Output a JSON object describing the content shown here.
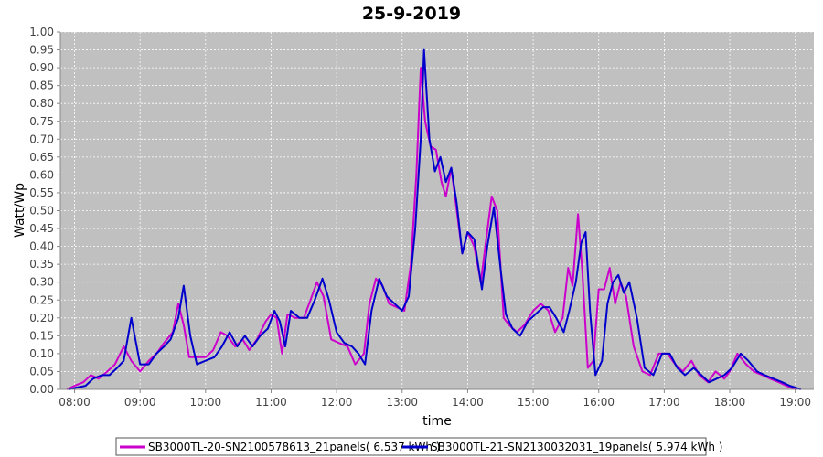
{
  "chart_data": {
    "type": "line",
    "title": "25-9-2019",
    "xlabel": "time",
    "ylabel": "Watt/Wp",
    "ylim": [
      0,
      1.0
    ],
    "xlim": [
      "07:47",
      "19:17"
    ],
    "y_ticks": [
      "0.00",
      "0.05",
      "0.10",
      "0.15",
      "0.20",
      "0.25",
      "0.30",
      "0.35",
      "0.40",
      "0.45",
      "0.50",
      "0.55",
      "0.60",
      "0.65",
      "0.70",
      "0.75",
      "0.80",
      "0.85",
      "0.90",
      "0.95",
      "1.00"
    ],
    "x_ticks": [
      "08:00",
      "09:00",
      "10:00",
      "11:00",
      "12:00",
      "13:00",
      "14:00",
      "15:00",
      "16:00",
      "17:00",
      "18:00",
      "19:00"
    ],
    "grid": true,
    "legend_position": "bottom",
    "series": [
      {
        "name": "SB3000TL-20-SN2100578613_21panels( 6.537 kWh )",
        "color": "#cc00cc",
        "points": [
          [
            "07:53",
            0.0
          ],
          [
            "08:00",
            0.01
          ],
          [
            "08:08",
            0.02
          ],
          [
            "08:15",
            0.04
          ],
          [
            "08:22",
            0.03
          ],
          [
            "08:30",
            0.05
          ],
          [
            "08:37",
            0.07
          ],
          [
            "08:45",
            0.12
          ],
          [
            "08:52",
            0.08
          ],
          [
            "09:00",
            0.05
          ],
          [
            "09:08",
            0.08
          ],
          [
            "09:15",
            0.1
          ],
          [
            "09:22",
            0.13
          ],
          [
            "09:30",
            0.16
          ],
          [
            "09:35",
            0.24
          ],
          [
            "09:40",
            0.18
          ],
          [
            "09:45",
            0.09
          ],
          [
            "09:52",
            0.09
          ],
          [
            "10:00",
            0.09
          ],
          [
            "10:07",
            0.11
          ],
          [
            "10:14",
            0.16
          ],
          [
            "10:20",
            0.15
          ],
          [
            "10:27",
            0.12
          ],
          [
            "10:34",
            0.14
          ],
          [
            "10:40",
            0.11
          ],
          [
            "10:47",
            0.14
          ],
          [
            "10:55",
            0.19
          ],
          [
            "11:00",
            0.21
          ],
          [
            "11:05",
            0.2
          ],
          [
            "11:10",
            0.1
          ],
          [
            "11:15",
            0.21
          ],
          [
            "11:22",
            0.2
          ],
          [
            "11:30",
            0.2
          ],
          [
            "11:36",
            0.25
          ],
          [
            "11:42",
            0.3
          ],
          [
            "11:48",
            0.26
          ],
          [
            "11:55",
            0.14
          ],
          [
            "12:02",
            0.13
          ],
          [
            "12:10",
            0.12
          ],
          [
            "12:17",
            0.07
          ],
          [
            "12:25",
            0.1
          ],
          [
            "12:30",
            0.24
          ],
          [
            "12:36",
            0.31
          ],
          [
            "12:42",
            0.29
          ],
          [
            "12:48",
            0.24
          ],
          [
            "12:55",
            0.23
          ],
          [
            "13:02",
            0.22
          ],
          [
            "13:08",
            0.35
          ],
          [
            "13:13",
            0.6
          ],
          [
            "13:17",
            0.9
          ],
          [
            "13:21",
            0.75
          ],
          [
            "13:26",
            0.68
          ],
          [
            "13:31",
            0.67
          ],
          [
            "13:36",
            0.58
          ],
          [
            "13:40",
            0.54
          ],
          [
            "13:45",
            0.62
          ],
          [
            "13:50",
            0.5
          ],
          [
            "13:55",
            0.38
          ],
          [
            "14:00",
            0.44
          ],
          [
            "14:06",
            0.4
          ],
          [
            "14:12",
            0.3
          ],
          [
            "14:17",
            0.42
          ],
          [
            "14:22",
            0.54
          ],
          [
            "14:27",
            0.5
          ],
          [
            "14:33",
            0.2
          ],
          [
            "14:38",
            0.18
          ],
          [
            "14:45",
            0.16
          ],
          [
            "14:52",
            0.18
          ],
          [
            "15:00",
            0.22
          ],
          [
            "15:07",
            0.24
          ],
          [
            "15:14",
            0.22
          ],
          [
            "15:20",
            0.16
          ],
          [
            "15:27",
            0.2
          ],
          [
            "15:32",
            0.34
          ],
          [
            "15:36",
            0.29
          ],
          [
            "15:41",
            0.49
          ],
          [
            "15:45",
            0.33
          ],
          [
            "15:50",
            0.06
          ],
          [
            "15:55",
            0.08
          ],
          [
            "16:00",
            0.28
          ],
          [
            "16:05",
            0.28
          ],
          [
            "16:10",
            0.34
          ],
          [
            "16:15",
            0.24
          ],
          [
            "16:20",
            0.3
          ],
          [
            "16:25",
            0.26
          ],
          [
            "16:32",
            0.12
          ],
          [
            "16:40",
            0.05
          ],
          [
            "16:47",
            0.04
          ],
          [
            "16:55",
            0.1
          ],
          [
            "17:03",
            0.1
          ],
          [
            "17:10",
            0.07
          ],
          [
            "17:17",
            0.05
          ],
          [
            "17:25",
            0.08
          ],
          [
            "17:32",
            0.04
          ],
          [
            "17:40",
            0.02
          ],
          [
            "17:47",
            0.05
          ],
          [
            "17:55",
            0.03
          ],
          [
            "18:00",
            0.05
          ],
          [
            "18:07",
            0.1
          ],
          [
            "18:15",
            0.07
          ],
          [
            "18:22",
            0.05
          ],
          [
            "18:30",
            0.04
          ],
          [
            "18:37",
            0.03
          ],
          [
            "18:45",
            0.02
          ],
          [
            "18:52",
            0.01
          ],
          [
            "19:00",
            0.0
          ]
        ]
      },
      {
        "name": "SB3000TL-21-SN2130032031_19panels( 5.974 kWh )",
        "color": "#0000cc",
        "points": [
          [
            "07:55",
            0.0
          ],
          [
            "08:02",
            0.005
          ],
          [
            "08:10",
            0.01
          ],
          [
            "08:17",
            0.03
          ],
          [
            "08:25",
            0.04
          ],
          [
            "08:32",
            0.04
          ],
          [
            "08:39",
            0.06
          ],
          [
            "08:45",
            0.08
          ],
          [
            "08:52",
            0.2
          ],
          [
            "09:00",
            0.07
          ],
          [
            "09:08",
            0.07
          ],
          [
            "09:15",
            0.1
          ],
          [
            "09:22",
            0.12
          ],
          [
            "09:28",
            0.14
          ],
          [
            "09:35",
            0.2
          ],
          [
            "09:40",
            0.29
          ],
          [
            "09:46",
            0.15
          ],
          [
            "09:52",
            0.07
          ],
          [
            "10:00",
            0.08
          ],
          [
            "10:08",
            0.09
          ],
          [
            "10:15",
            0.12
          ],
          [
            "10:22",
            0.16
          ],
          [
            "10:29",
            0.12
          ],
          [
            "10:36",
            0.15
          ],
          [
            "10:43",
            0.12
          ],
          [
            "10:50",
            0.15
          ],
          [
            "10:57",
            0.17
          ],
          [
            "11:03",
            0.22
          ],
          [
            "11:08",
            0.19
          ],
          [
            "11:13",
            0.12
          ],
          [
            "11:18",
            0.22
          ],
          [
            "11:26",
            0.2
          ],
          [
            "11:33",
            0.2
          ],
          [
            "11:40",
            0.25
          ],
          [
            "11:47",
            0.31
          ],
          [
            "11:53",
            0.25
          ],
          [
            "12:00",
            0.16
          ],
          [
            "12:07",
            0.13
          ],
          [
            "12:14",
            0.12
          ],
          [
            "12:20",
            0.1
          ],
          [
            "12:26",
            0.07
          ],
          [
            "12:32",
            0.22
          ],
          [
            "12:39",
            0.31
          ],
          [
            "12:46",
            0.26
          ],
          [
            "12:53",
            0.24
          ],
          [
            "13:00",
            0.22
          ],
          [
            "13:06",
            0.26
          ],
          [
            "13:12",
            0.45
          ],
          [
            "13:17",
            0.7
          ],
          [
            "13:20",
            0.95
          ],
          [
            "13:25",
            0.7
          ],
          [
            "13:30",
            0.61
          ],
          [
            "13:35",
            0.65
          ],
          [
            "13:40",
            0.58
          ],
          [
            "13:45",
            0.62
          ],
          [
            "13:50",
            0.52
          ],
          [
            "13:55",
            0.38
          ],
          [
            "14:00",
            0.44
          ],
          [
            "14:06",
            0.42
          ],
          [
            "14:13",
            0.28
          ],
          [
            "14:18",
            0.4
          ],
          [
            "14:24",
            0.51
          ],
          [
            "14:30",
            0.34
          ],
          [
            "14:35",
            0.21
          ],
          [
            "14:41",
            0.17
          ],
          [
            "14:48",
            0.15
          ],
          [
            "14:55",
            0.19
          ],
          [
            "15:02",
            0.21
          ],
          [
            "15:09",
            0.23
          ],
          [
            "15:15",
            0.23
          ],
          [
            "15:21",
            0.2
          ],
          [
            "15:28",
            0.16
          ],
          [
            "15:33",
            0.22
          ],
          [
            "15:39",
            0.3
          ],
          [
            "15:44",
            0.41
          ],
          [
            "15:48",
            0.44
          ],
          [
            "15:52",
            0.22
          ],
          [
            "15:57",
            0.04
          ],
          [
            "16:03",
            0.08
          ],
          [
            "16:08",
            0.24
          ],
          [
            "16:13",
            0.3
          ],
          [
            "16:18",
            0.32
          ],
          [
            "16:23",
            0.27
          ],
          [
            "16:28",
            0.3
          ],
          [
            "16:35",
            0.2
          ],
          [
            "16:42",
            0.06
          ],
          [
            "16:50",
            0.04
          ],
          [
            "16:58",
            0.1
          ],
          [
            "17:05",
            0.1
          ],
          [
            "17:12",
            0.06
          ],
          [
            "17:19",
            0.04
          ],
          [
            "17:27",
            0.06
          ],
          [
            "17:34",
            0.04
          ],
          [
            "17:41",
            0.02
          ],
          [
            "17:48",
            0.03
          ],
          [
            "17:55",
            0.04
          ],
          [
            "18:02",
            0.06
          ],
          [
            "18:10",
            0.1
          ],
          [
            "18:17",
            0.08
          ],
          [
            "18:25",
            0.05
          ],
          [
            "18:32",
            0.04
          ],
          [
            "18:40",
            0.03
          ],
          [
            "18:48",
            0.02
          ],
          [
            "18:55",
            0.01
          ],
          [
            "19:05",
            0.0
          ]
        ]
      }
    ]
  }
}
